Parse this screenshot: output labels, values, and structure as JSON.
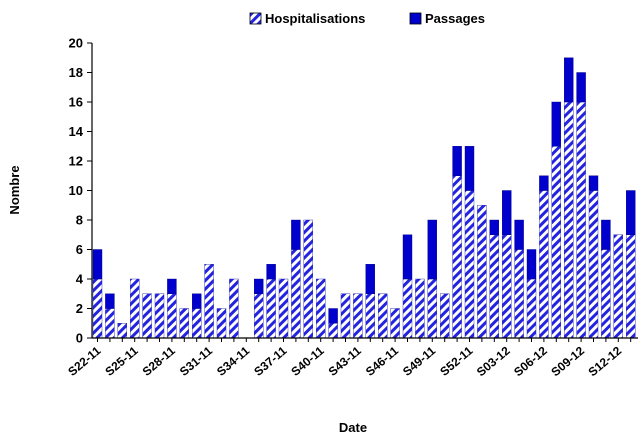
{
  "chart_data": {
    "type": "bar",
    "stacked": true,
    "xlabel": "Date",
    "ylabel": "Nombre",
    "ylim": [
      0,
      20
    ],
    "yticks": [
      0,
      2,
      4,
      6,
      8,
      10,
      12,
      14,
      16,
      18,
      20
    ],
    "grid": false,
    "legend": "top-center",
    "categories": [
      "S22-11",
      "S23-11",
      "S24-11",
      "S25-11",
      "S26-11",
      "S27-11",
      "S28-11",
      "S29-11",
      "S30-11",
      "S31-11",
      "S32-11",
      "S33-11",
      "S34-11",
      "S35-11",
      "S36-11",
      "S37-11",
      "S38-11",
      "S39-11",
      "S40-11",
      "S41-11",
      "S42-11",
      "S43-11",
      "S44-11",
      "S45-11",
      "S46-11",
      "S47-11",
      "S48-11",
      "S49-11",
      "S50-11",
      "S51-11",
      "S52-11",
      "S01-12",
      "S02-12",
      "S03-12",
      "S04-12",
      "S05-12",
      "S06-12",
      "S07-12",
      "S08-12",
      "S09-12",
      "S10-12",
      "S11-12",
      "S12-12",
      "S13-12"
    ],
    "x_tick_labels": [
      "S22-11",
      "S25-11",
      "S28-11",
      "S31-11",
      "S34-11",
      "S37-11",
      "S40-11",
      "S43-11",
      "S46-11",
      "S49-11",
      "S52-11",
      "S03-12",
      "S06-12",
      "S09-12",
      "S12-12"
    ],
    "series": [
      {
        "name": "Hospitalisations",
        "color": "#1f1fdd",
        "pattern": "diagonal-hatch",
        "values": [
          4,
          2,
          1,
          4,
          3,
          3,
          3,
          2,
          2,
          5,
          2,
          4,
          0,
          3,
          4,
          4,
          6,
          8,
          4,
          1,
          3,
          3,
          3,
          3,
          2,
          4,
          4,
          4,
          3,
          11,
          10,
          9,
          7,
          7,
          6,
          4,
          10,
          13,
          16,
          16,
          10,
          6,
          7,
          7
        ]
      },
      {
        "name": "Passages",
        "color": "#0000cc",
        "pattern": "solid",
        "values": [
          2,
          1,
          0,
          0,
          0,
          0,
          1,
          0,
          1,
          0,
          0,
          0,
          0,
          1,
          1,
          0,
          2,
          0,
          0,
          1,
          0,
          0,
          2,
          0,
          0,
          3,
          0,
          4,
          0,
          2,
          3,
          0,
          1,
          3,
          2,
          2,
          1,
          3,
          3,
          2,
          1,
          2,
          0,
          3
        ]
      }
    ]
  }
}
